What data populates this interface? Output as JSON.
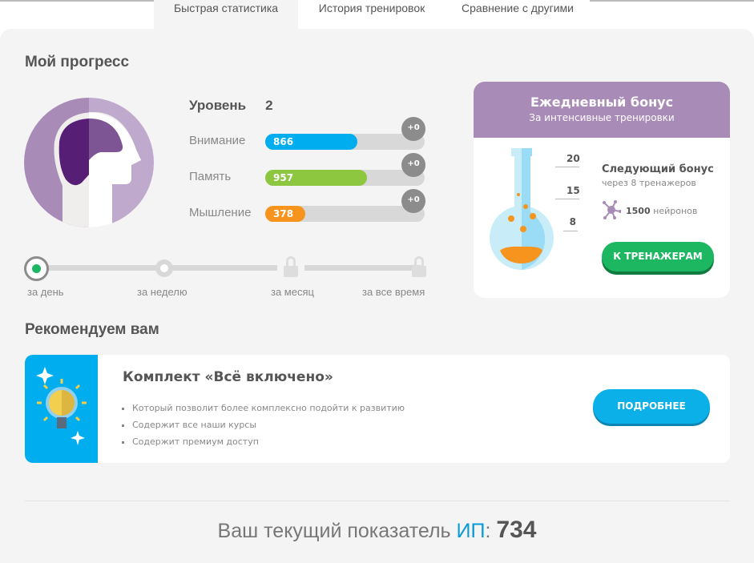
{
  "tabs": [
    {
      "label": "Быстрая статистика",
      "active": true
    },
    {
      "label": "История тренировок",
      "active": false
    },
    {
      "label": "Сравнение с другими",
      "active": false
    }
  ],
  "progress": {
    "title": "Мой прогресс",
    "level_label": "Уровень",
    "level_value": "2",
    "stats": [
      {
        "label": "Внимание",
        "value": "866",
        "fill_percent": 58,
        "color": "#00aeef",
        "delta": "+0"
      },
      {
        "label": "Память",
        "value": "957",
        "fill_percent": 64,
        "color": "#8dc63f",
        "delta": "+0"
      },
      {
        "label": "Мышление",
        "value": "378",
        "fill_percent": 25,
        "color": "#f7941d",
        "delta": "+0"
      }
    ],
    "periods": [
      {
        "label": "за день",
        "state": "selected"
      },
      {
        "label": "за неделю",
        "state": "available"
      },
      {
        "label": "за месяц",
        "state": "locked"
      },
      {
        "label": "за все время",
        "state": "locked"
      }
    ]
  },
  "bonus": {
    "title": "Ежедневный бонус",
    "subtitle": "За интенсивные тренировки",
    "scale": [
      "20",
      "15",
      "8"
    ],
    "next_title": "Следующий бонус",
    "next_sub": "через 8 тренажеров",
    "neurons_value": "1500",
    "neurons_label": "нейронов",
    "button": "К ТРЕНАЖЕРАМ"
  },
  "recommend": {
    "title": "Рекомендуем вам",
    "card_title": "Комплект «Всё включено»",
    "bullets": [
      "Который позволит более комплексно подойти к развитию",
      "Содержит все наши курсы",
      "Содержит премиум доступ"
    ],
    "button": "ПОДРОБНЕЕ"
  },
  "iq": {
    "prefix": "Ваш текущий показатель ",
    "abbr": "ИП",
    "colon": ": ",
    "value": "734"
  }
}
